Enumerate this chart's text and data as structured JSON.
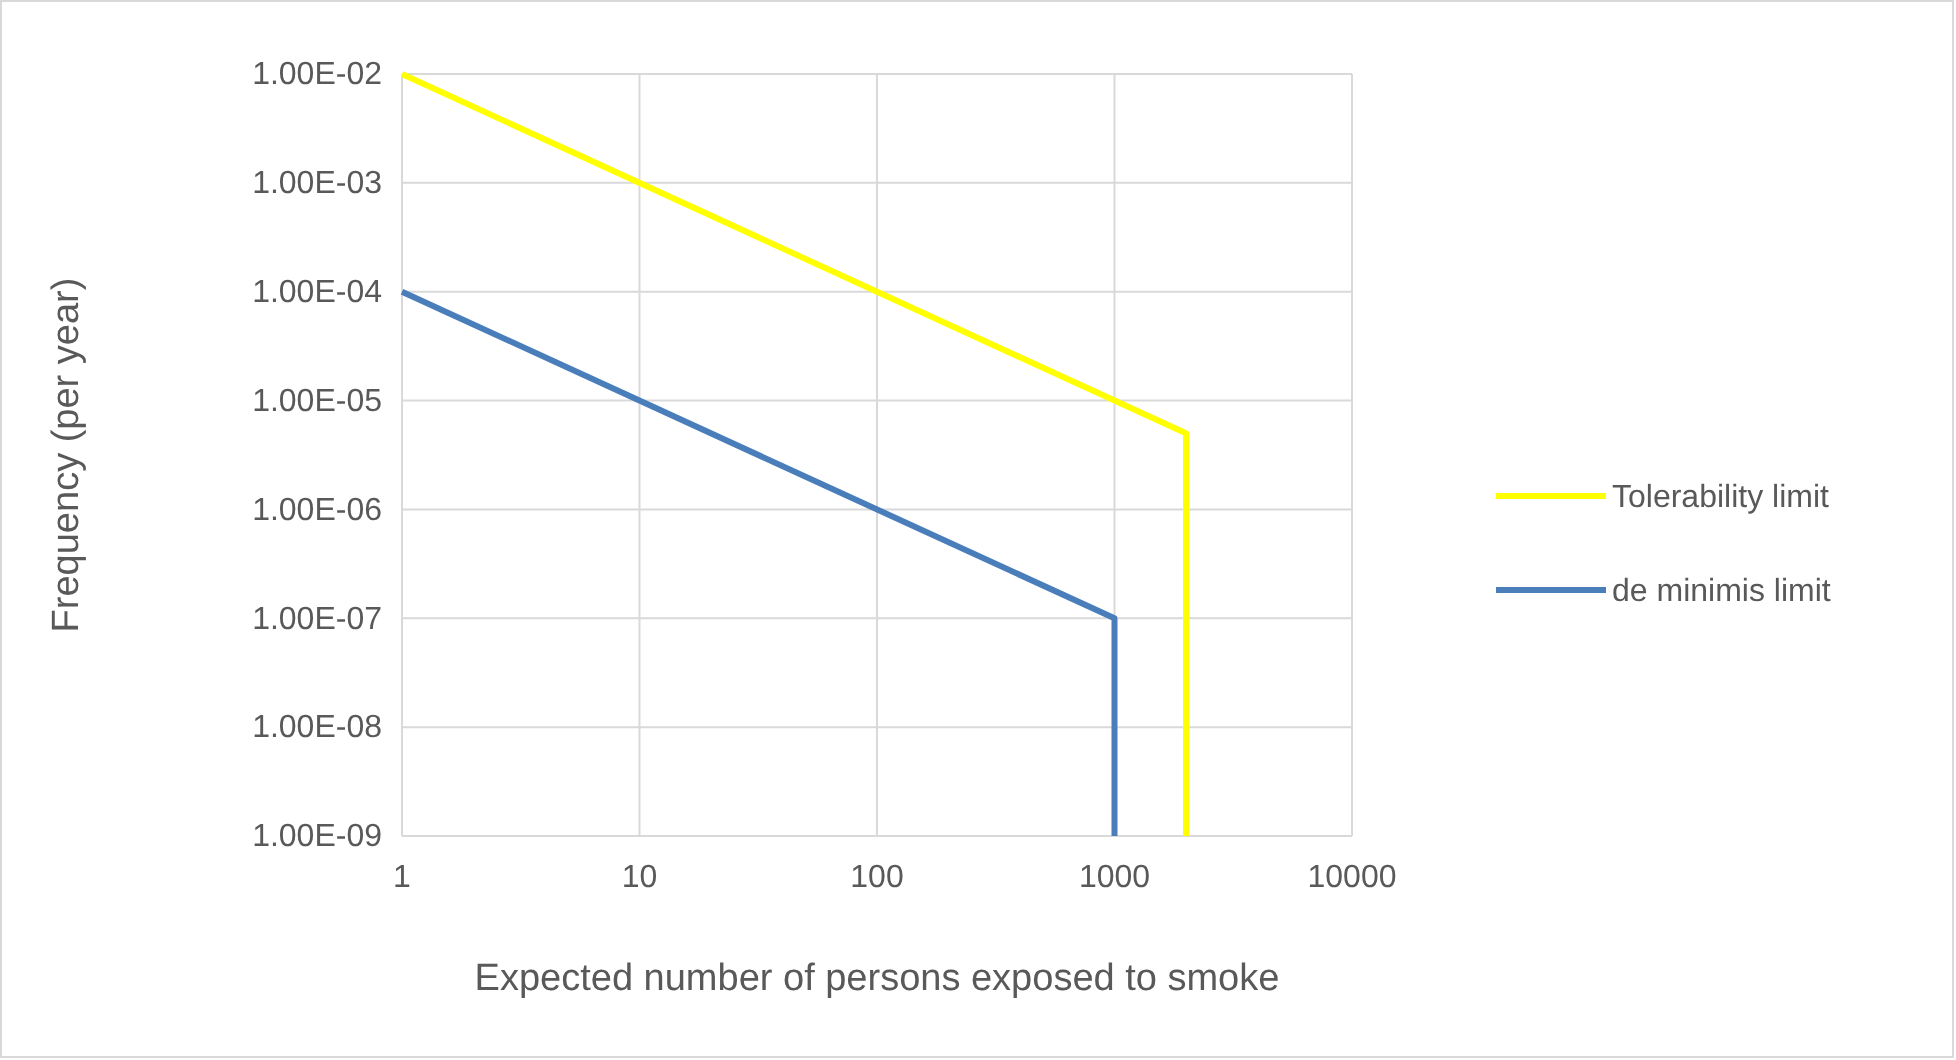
{
  "chart_data": {
    "type": "line",
    "xlabel": "Expected number of persons exposed to smoke",
    "ylabel": "Frequency (per year)",
    "log": "xy",
    "grid": true,
    "legend": "right",
    "marker": "none",
    "line_style": "solid",
    "xlim": [
      1,
      10000
    ],
    "xticks": [
      1,
      10,
      100,
      1000,
      10000
    ],
    "ylim": [
      1e-09,
      0.01
    ],
    "yticks": [
      {
        "value": 0.01,
        "label": "1.00E-02"
      },
      {
        "value": 0.001,
        "label": "1.00E-03"
      },
      {
        "value": 0.0001,
        "label": "1.00E-04"
      },
      {
        "value": 1e-05,
        "label": "1.00E-05"
      },
      {
        "value": 1e-06,
        "label": "1.00E-06"
      },
      {
        "value": 1e-07,
        "label": "1.00E-07"
      },
      {
        "value": 1e-08,
        "label": "1.00E-08"
      },
      {
        "value": 1e-09,
        "label": "1.00E-09"
      }
    ],
    "series": [
      {
        "name": "Tolerability limit",
        "color": "#ffff00",
        "x": [
          1,
          2000,
          2000
        ],
        "values": [
          0.01,
          5e-06,
          1e-09
        ]
      },
      {
        "name": "de minimis limit",
        "color": "#4a7ebb",
        "x": [
          1,
          1000,
          1000
        ],
        "values": [
          0.0001,
          1e-07,
          1e-09
        ]
      }
    ]
  }
}
